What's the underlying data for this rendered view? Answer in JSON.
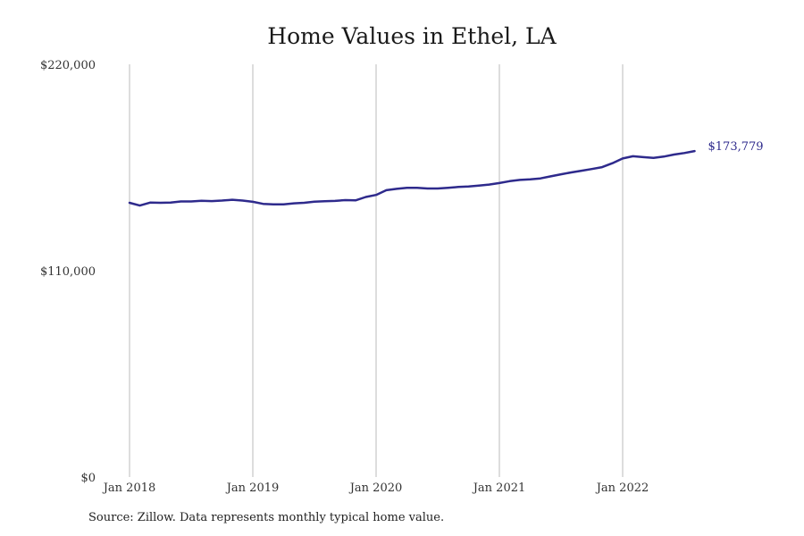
{
  "chart_data": {
    "type": "line",
    "title": "Home Values in Ethel, LA",
    "xlabel": "",
    "ylabel": "",
    "ylim": [
      0,
      220000
    ],
    "y_ticks": [
      "$220,000",
      "$110,000",
      "$0"
    ],
    "y_tick_values": [
      220000,
      110000,
      0
    ],
    "x_ticks": [
      "Jan 2018",
      "Jan 2019",
      "Jan 2020",
      "Jan 2021",
      "Jan 2022"
    ],
    "x_tick_dates": [
      "2018-01",
      "2019-01",
      "2020-01",
      "2021-01",
      "2022-01"
    ],
    "grid": "vertical lines at x ticks",
    "series_color": "#2e2a8c",
    "x": [
      "2018-01",
      "2018-02",
      "2018-03",
      "2018-04",
      "2018-05",
      "2018-06",
      "2018-07",
      "2018-08",
      "2018-09",
      "2018-10",
      "2018-11",
      "2018-12",
      "2019-01",
      "2019-02",
      "2019-03",
      "2019-04",
      "2019-05",
      "2019-06",
      "2019-07",
      "2019-08",
      "2019-09",
      "2019-10",
      "2019-11",
      "2019-12",
      "2020-01",
      "2020-02",
      "2020-03",
      "2020-04",
      "2020-05",
      "2020-06",
      "2020-07",
      "2020-08",
      "2020-09",
      "2020-10",
      "2020-11",
      "2020-12",
      "2021-01",
      "2021-02",
      "2021-03",
      "2021-04",
      "2021-05",
      "2021-06",
      "2021-07",
      "2021-08",
      "2021-09",
      "2021-10",
      "2021-11",
      "2021-12",
      "2022-01",
      "2022-02",
      "2022-03",
      "2022-04",
      "2022-05",
      "2022-06",
      "2022-07",
      "2022-08"
    ],
    "series": [
      {
        "values": [
          146200,
          144700,
          146300,
          146200,
          146300,
          146900,
          146900,
          147300,
          147100,
          147400,
          147800,
          147400,
          146700,
          145600,
          145400,
          145400,
          145900,
          146200,
          146800,
          147000,
          147200,
          147600,
          147500,
          149300,
          150400,
          152900,
          153600,
          154200,
          154200,
          153800,
          153800,
          154200,
          154600,
          154900,
          155400,
          155900,
          156700,
          157700,
          158400,
          158700,
          159200,
          160300,
          161400,
          162400,
          163300,
          164200,
          165200,
          167300,
          169800,
          171000,
          170500,
          170100,
          170800,
          171900,
          172700,
          173779
        ]
      }
    ],
    "end_label": "$173,779"
  },
  "source_note": "Source: Zillow. Data represents monthly typical home value."
}
